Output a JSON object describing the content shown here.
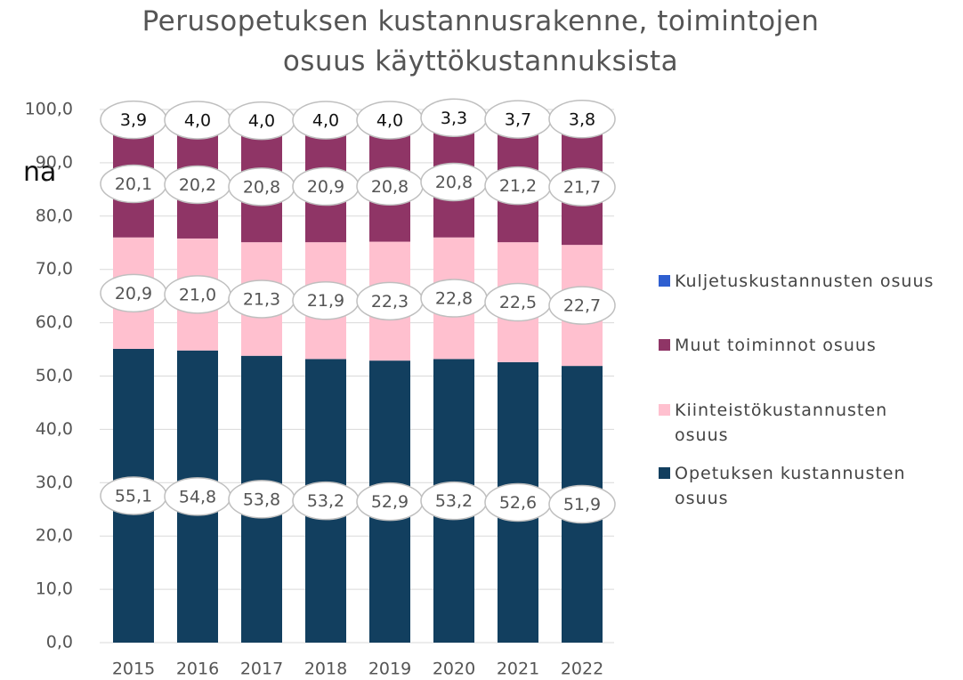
{
  "chart_data": {
    "type": "stacked_bar",
    "title": "Perusopetuksen kustannusrakenne, toimintojen osuus käyttökustannuksista",
    "annotation": "na",
    "categories": [
      "2015",
      "2016",
      "2017",
      "2018",
      "2019",
      "2020",
      "2021",
      "2022"
    ],
    "series": [
      {
        "name": "Opetuksen kustannusten osuus",
        "color": "#123f5f",
        "values": [
          55.1,
          54.8,
          53.8,
          53.2,
          52.9,
          53.2,
          52.6,
          51.9
        ],
        "value_labels": [
          "55,1",
          "54,8",
          "53,8",
          "53,2",
          "52,9",
          "53,2",
          "52,6",
          "51,9"
        ]
      },
      {
        "name": "Kiinteistökustannusten osuus",
        "color": "#ffc0cf",
        "values": [
          20.9,
          21.0,
          21.3,
          21.9,
          22.3,
          22.8,
          22.5,
          22.7
        ],
        "value_labels": [
          "20,9",
          "21,0",
          "21,3",
          "21,9",
          "22,3",
          "22,8",
          "22,5",
          "22,7"
        ]
      },
      {
        "name": "Muut toiminnot osuus",
        "color": "#8f3566",
        "values": [
          20.1,
          20.2,
          20.8,
          20.9,
          20.8,
          20.8,
          21.2,
          21.7
        ],
        "value_labels": [
          "20,1",
          "20,2",
          "20,8",
          "20,9",
          "20,8",
          "20,8",
          "21,2",
          "21,7"
        ]
      },
      {
        "name": "Kuljetuskustannusten osuus",
        "color": "#2f5fd0",
        "values": [
          3.9,
          4.0,
          4.0,
          4.0,
          4.0,
          3.3,
          3.7,
          3.8
        ],
        "value_labels": [
          "3,9",
          "4,0",
          "4,0",
          "4,0",
          "4,0",
          "3,3",
          "3,7",
          "3,8"
        ]
      }
    ],
    "ylim": [
      0,
      100
    ],
    "yticks": [
      {
        "value": 0,
        "label": "0,0"
      },
      {
        "value": 10,
        "label": "10,0"
      },
      {
        "value": 20,
        "label": "20,0"
      },
      {
        "value": 30,
        "label": "30,0"
      },
      {
        "value": 40,
        "label": "40,0"
      },
      {
        "value": 50,
        "label": "50,0"
      },
      {
        "value": 60,
        "label": "60,0"
      },
      {
        "value": 70,
        "label": "70,0"
      },
      {
        "value": 80,
        "label": "80,0"
      },
      {
        "value": 90,
        "label": "90,0"
      },
      {
        "value": 100,
        "label": "100,0"
      }
    ],
    "grid": true,
    "legend": "right"
  }
}
